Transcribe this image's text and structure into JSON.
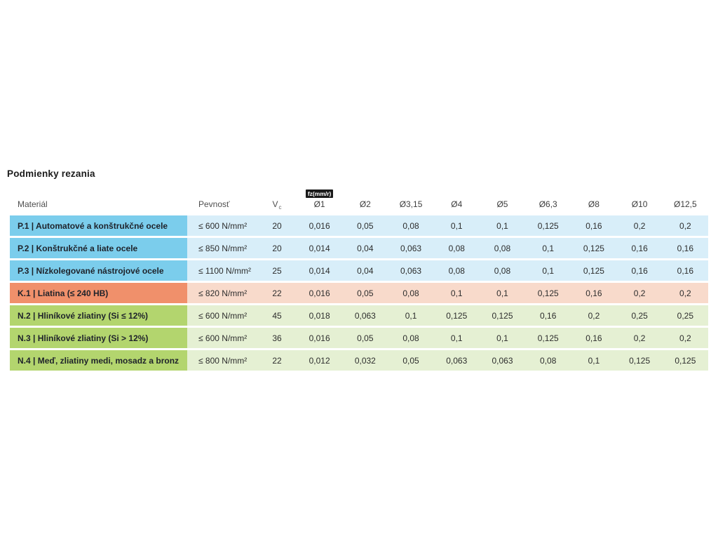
{
  "page": {
    "title": "Podmienky rezania"
  },
  "table": {
    "headers": {
      "material": "Materiál",
      "pevnost": "Pevnosť",
      "vc_base": "V",
      "vc_sub": "c",
      "fz_badge": "fz(mm/r)",
      "diameters": [
        "Ø1",
        "Ø2",
        "Ø3,15",
        "Ø4",
        "Ø5",
        "Ø6,3",
        "Ø8",
        "Ø10",
        "Ø12,5"
      ]
    },
    "colors": {
      "p_label": "#7bcdec",
      "p_data": "#d8eef9",
      "k_label": "#f0906b",
      "k_data": "#f8dacb",
      "n_label": "#b3d56e",
      "n_data": "#e5f0d3"
    },
    "rows": [
      {
        "group": "p",
        "label": "P.1 | Automatové a konštrukčné ocele",
        "pevnost": "≤ 600 N/mm²",
        "vc": "20",
        "fz": [
          "0,016",
          "0,05",
          "0,08",
          "0,1",
          "0,1",
          "0,125",
          "0,16",
          "0,2",
          "0,2"
        ]
      },
      {
        "group": "p",
        "label": "P.2 | Konštrukčné a liate ocele",
        "pevnost": "≤ 850 N/mm²",
        "vc": "20",
        "fz": [
          "0,014",
          "0,04",
          "0,063",
          "0,08",
          "0,08",
          "0,1",
          "0,125",
          "0,16",
          "0,16"
        ]
      },
      {
        "group": "p",
        "label": "P.3 | Nízkolegované nástrojové ocele",
        "pevnost": "≤ 1100 N/mm²",
        "vc": "25",
        "fz": [
          "0,014",
          "0,04",
          "0,063",
          "0,08",
          "0,08",
          "0,1",
          "0,125",
          "0,16",
          "0,16"
        ]
      },
      {
        "group": "k",
        "label": "K.1 | Liatina (≤ 240 HB)",
        "pevnost": "≤ 820 N/mm²",
        "vc": "22",
        "fz": [
          "0,016",
          "0,05",
          "0,08",
          "0,1",
          "0,1",
          "0,125",
          "0,16",
          "0,2",
          "0,2"
        ]
      },
      {
        "group": "n",
        "label": "N.2 | Hliníkové zliatiny (Si ≤ 12%)",
        "pevnost": "≤ 600 N/mm²",
        "vc": "45",
        "fz": [
          "0,018",
          "0,063",
          "0,1",
          "0,125",
          "0,125",
          "0,16",
          "0,2",
          "0,25",
          "0,25"
        ]
      },
      {
        "group": "n",
        "label": "N.3 | Hliníkové zliatiny (Si > 12%)",
        "pevnost": "≤ 600 N/mm²",
        "vc": "36",
        "fz": [
          "0,016",
          "0,05",
          "0,08",
          "0,1",
          "0,1",
          "0,125",
          "0,16",
          "0,2",
          "0,2"
        ]
      },
      {
        "group": "n",
        "label": "N.4 | Meď, zliatiny medi, mosadz a bronz",
        "pevnost": "≤ 800 N/mm²",
        "vc": "22",
        "fz": [
          "0,012",
          "0,032",
          "0,05",
          "0,063",
          "0,063",
          "0,08",
          "0,1",
          "0,125",
          "0,125"
        ]
      }
    ]
  }
}
